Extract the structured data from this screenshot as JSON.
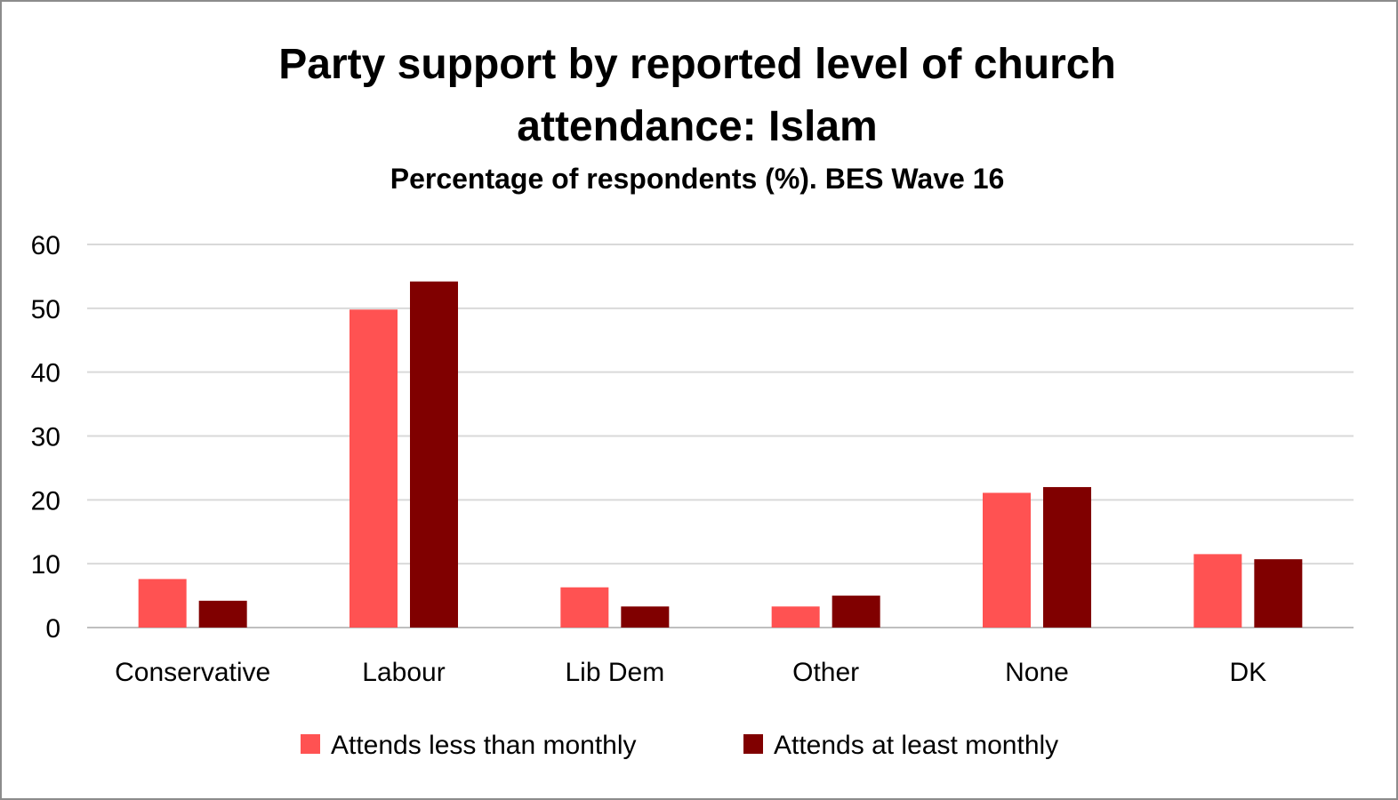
{
  "chart_data": {
    "type": "bar",
    "title_line1": "Party support by reported level of church",
    "title_line2": "attendance: Islam",
    "subtitle": "Percentage of respondents (%). BES Wave 16",
    "categories": [
      "Conservative",
      "Labour",
      "Lib Dem",
      "Other",
      "None",
      "DK"
    ],
    "series": [
      {
        "name": "Attends less than monthly",
        "color": "#ff5252",
        "values": [
          7.6,
          49.8,
          6.3,
          3.3,
          21.1,
          11.5
        ]
      },
      {
        "name": "Attends at least monthly",
        "color": "#800000",
        "values": [
          4.2,
          54.2,
          3.3,
          5.0,
          22.0,
          10.7
        ]
      }
    ],
    "ylim": [
      0,
      60
    ],
    "yticks": [
      0,
      10,
      20,
      30,
      40,
      50,
      60
    ],
    "grid": true,
    "legend_position": "bottom"
  }
}
